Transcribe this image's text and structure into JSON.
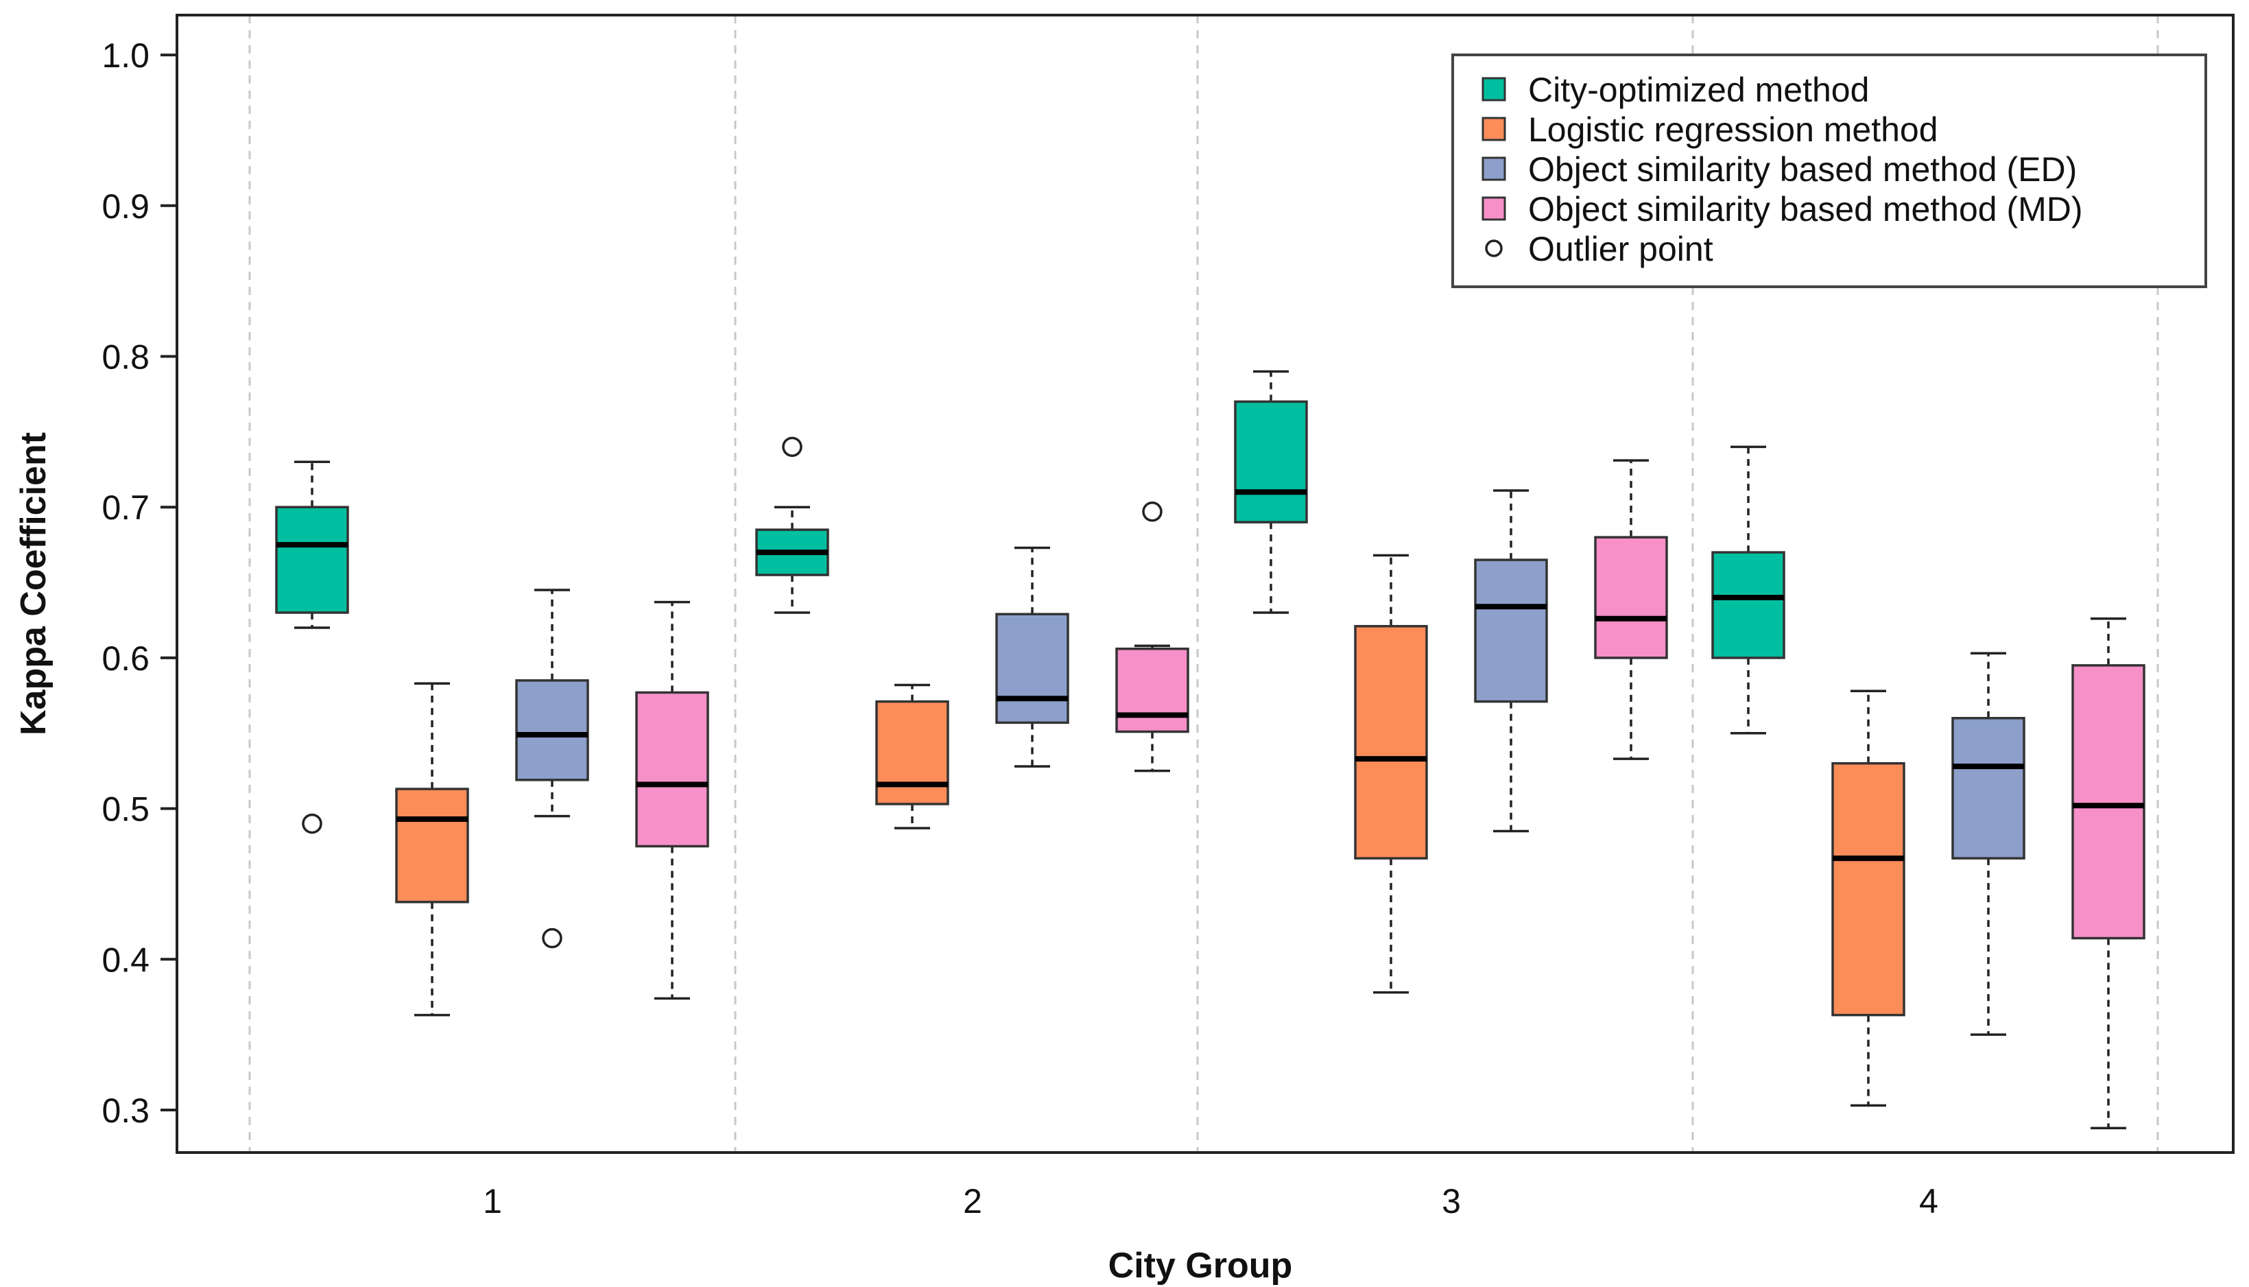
{
  "chart_data": {
    "type": "box",
    "title": "",
    "xlabel": "City Group",
    "ylabel": "Kappa Coefficient",
    "ylim": [
      0.28,
      1.03
    ],
    "yticks": [
      "0.3",
      "0.4",
      "0.5",
      "0.6",
      "0.7",
      "0.8",
      "0.9",
      "1.0"
    ],
    "categories": [
      "1",
      "2",
      "3",
      "4"
    ],
    "grid": "vertical dashed separators",
    "legend_position": "top-right",
    "series": [
      {
        "name": "City-optimized method",
        "color": "#00bfa0",
        "boxes": [
          {
            "whisker_low": 0.62,
            "q1": 0.63,
            "median": 0.675,
            "q3": 0.7,
            "whisker_high": 0.73,
            "outliers": [
              0.49
            ]
          },
          {
            "whisker_low": 0.63,
            "q1": 0.655,
            "median": 0.67,
            "q3": 0.685,
            "whisker_high": 0.7,
            "outliers": [
              0.74
            ]
          },
          {
            "whisker_low": 0.63,
            "q1": 0.69,
            "median": 0.71,
            "q3": 0.77,
            "whisker_high": 0.79,
            "outliers": []
          },
          {
            "whisker_low": 0.55,
            "q1": 0.6,
            "median": 0.64,
            "q3": 0.67,
            "whisker_high": 0.74,
            "outliers": []
          }
        ]
      },
      {
        "name": "Logistic regression method",
        "color": "#fc8d59",
        "boxes": [
          {
            "whisker_low": 0.363,
            "q1": 0.438,
            "median": 0.493,
            "q3": 0.513,
            "whisker_high": 0.583,
            "outliers": []
          },
          {
            "whisker_low": 0.487,
            "q1": 0.503,
            "median": 0.516,
            "q3": 0.571,
            "whisker_high": 0.582,
            "outliers": []
          },
          {
            "whisker_low": 0.378,
            "q1": 0.467,
            "median": 0.533,
            "q3": 0.621,
            "whisker_high": 0.668,
            "outliers": []
          },
          {
            "whisker_low": 0.303,
            "q1": 0.363,
            "median": 0.467,
            "q3": 0.53,
            "whisker_high": 0.578,
            "outliers": []
          }
        ]
      },
      {
        "name": "Object similarity based method (ED)",
        "color": "#8da0cb",
        "boxes": [
          {
            "whisker_low": 0.495,
            "q1": 0.519,
            "median": 0.549,
            "q3": 0.585,
            "whisker_high": 0.645,
            "outliers": [
              0.414
            ]
          },
          {
            "whisker_low": 0.528,
            "q1": 0.557,
            "median": 0.573,
            "q3": 0.629,
            "whisker_high": 0.673,
            "outliers": []
          },
          {
            "whisker_low": 0.485,
            "q1": 0.571,
            "median": 0.634,
            "q3": 0.665,
            "whisker_high": 0.711,
            "outliers": []
          },
          {
            "whisker_low": 0.35,
            "q1": 0.467,
            "median": 0.528,
            "q3": 0.56,
            "whisker_high": 0.603,
            "outliers": []
          }
        ]
      },
      {
        "name": "Object similarity based method (MD)",
        "color": "#f78fc8",
        "boxes": [
          {
            "whisker_low": 0.374,
            "q1": 0.475,
            "median": 0.516,
            "q3": 0.577,
            "whisker_high": 0.637,
            "outliers": []
          },
          {
            "whisker_low": 0.525,
            "q1": 0.551,
            "median": 0.562,
            "q3": 0.606,
            "whisker_high": 0.608,
            "outliers": [
              0.697
            ]
          },
          {
            "whisker_low": 0.533,
            "q1": 0.6,
            "median": 0.626,
            "q3": 0.68,
            "whisker_high": 0.731,
            "outliers": []
          },
          {
            "whisker_low": 0.288,
            "q1": 0.414,
            "median": 0.502,
            "q3": 0.595,
            "whisker_high": 0.626,
            "outliers": []
          }
        ]
      }
    ],
    "legend": [
      {
        "label": "City-optimized method",
        "kind": "box",
        "color": "#00bfa0"
      },
      {
        "label": "Logistic regression method",
        "kind": "box",
        "color": "#fc8d59"
      },
      {
        "label": "Object similarity based method (ED)",
        "kind": "box",
        "color": "#8da0cb"
      },
      {
        "label": "Object similarity based method (MD)",
        "kind": "box",
        "color": "#f78fc8"
      },
      {
        "label": "Outlier point",
        "kind": "circle",
        "color": "#333333"
      }
    ]
  }
}
